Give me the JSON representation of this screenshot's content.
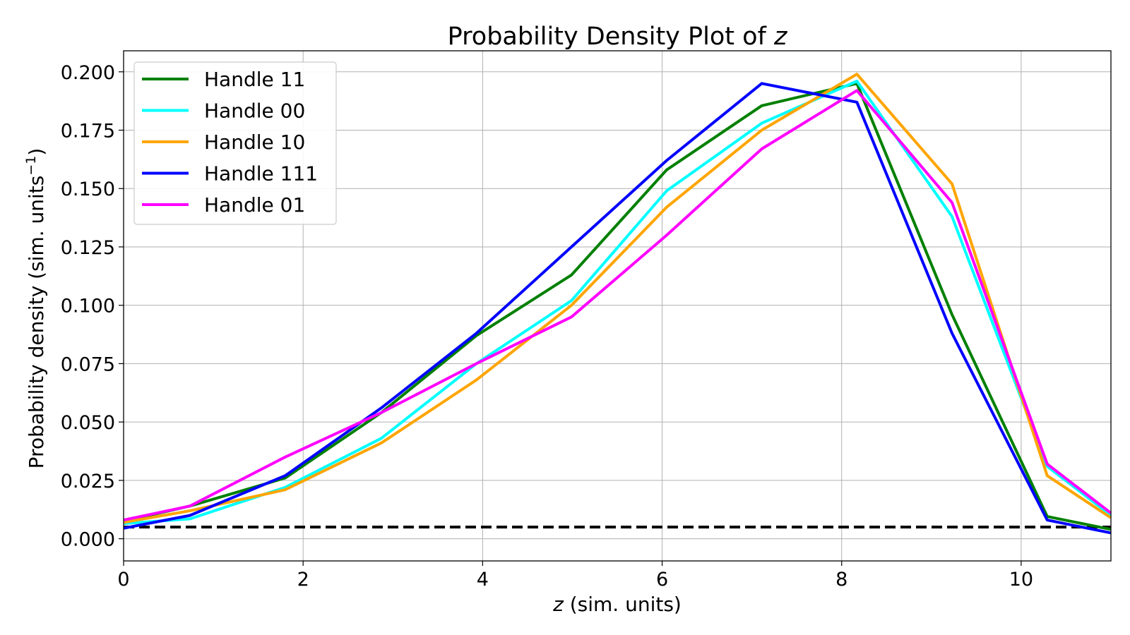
{
  "chart_data": {
    "type": "line",
    "title_prefix": "Probability Density Plot of ",
    "title_var": "z",
    "xlabel_var": "z",
    "xlabel_rest": " (sim. units)",
    "ylabel_main": "Probability density (sim. units",
    "ylabel_sup": "−1",
    "ylabel_close": ")",
    "xlim": [
      0,
      11
    ],
    "ylim": [
      -0.0095,
      0.209
    ],
    "x_ticks": [
      0,
      2,
      4,
      6,
      8,
      10
    ],
    "x_tick_labels": [
      "0",
      "2",
      "4",
      "6",
      "8",
      "10"
    ],
    "y_ticks": [
      0.0,
      0.025,
      0.05,
      0.075,
      0.1,
      0.125,
      0.15,
      0.175,
      0.2
    ],
    "y_tick_labels": [
      "0.000",
      "0.025",
      "0.050",
      "0.075",
      "0.100",
      "0.125",
      "0.150",
      "0.175",
      "0.200"
    ],
    "grid": true,
    "legend_position": "top-left",
    "x": [
      0,
      0.74,
      1.8,
      2.87,
      3.93,
      4.99,
      6.05,
      7.11,
      8.17,
      9.23,
      10.29,
      11
    ],
    "series": [
      {
        "name": "Handle 11",
        "color": "#008000",
        "values": [
          0.0075,
          0.014,
          0.026,
          0.054,
          0.087,
          0.113,
          0.158,
          0.1855,
          0.195,
          0.096,
          0.0095,
          0.004
        ]
      },
      {
        "name": "Handle 00",
        "color": "#00ffff",
        "values": [
          0.0065,
          0.0085,
          0.022,
          0.043,
          0.075,
          0.102,
          0.149,
          0.178,
          0.196,
          0.138,
          0.031,
          0.01
        ]
      },
      {
        "name": "Handle 10",
        "color": "#ffa500",
        "values": [
          0.007,
          0.012,
          0.021,
          0.041,
          0.068,
          0.1,
          0.142,
          0.175,
          0.199,
          0.152,
          0.027,
          0.009
        ]
      },
      {
        "name": "Handle 111",
        "color": "#0000ff",
        "values": [
          0.0045,
          0.01,
          0.027,
          0.056,
          0.088,
          0.125,
          0.162,
          0.195,
          0.187,
          0.088,
          0.008,
          0.0025
        ]
      },
      {
        "name": "Handle 01",
        "color": "#ff00ff",
        "values": [
          0.008,
          0.014,
          0.035,
          0.054,
          0.075,
          0.095,
          0.13,
          0.167,
          0.192,
          0.144,
          0.032,
          0.011
        ]
      }
    ],
    "reference_line": {
      "y": 0.005,
      "color": "#000000",
      "style": "dashed"
    }
  }
}
